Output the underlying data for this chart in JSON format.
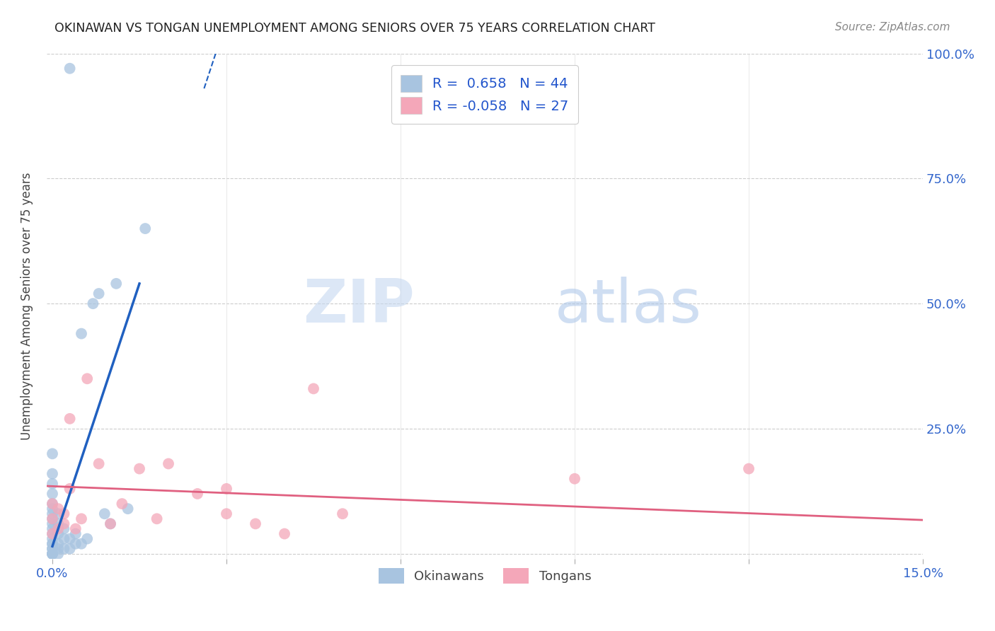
{
  "title": "OKINAWAN VS TONGAN UNEMPLOYMENT AMONG SENIORS OVER 75 YEARS CORRELATION CHART",
  "source": "Source: ZipAtlas.com",
  "ylabel_label": "Unemployment Among Seniors over 75 years",
  "x_ticks": [
    0.0,
    0.03,
    0.06,
    0.09,
    0.12,
    0.15
  ],
  "y_ticks": [
    0.0,
    0.25,
    0.5,
    0.75,
    1.0
  ],
  "xlim": [
    -0.001,
    0.15
  ],
  "ylim": [
    -0.01,
    1.0
  ],
  "okinawan_R": 0.658,
  "okinawan_N": 44,
  "tongan_R": -0.058,
  "tongan_N": 27,
  "okinawan_color": "#a8c4e0",
  "tongan_color": "#f4a7b9",
  "okinawan_line_color": "#2060c0",
  "tongan_line_color": "#e06080",
  "watermark_zip": "ZIP",
  "watermark_atlas": "atlas",
  "background_color": "#ffffff",
  "grid_color": "#cccccc",
  "title_color": "#222222",
  "okinawan_x": [
    0.0,
    0.0,
    0.0,
    0.0,
    0.0,
    0.0,
    0.0,
    0.0,
    0.0,
    0.0,
    0.0,
    0.0,
    0.0,
    0.0,
    0.0,
    0.0,
    0.0,
    0.0,
    0.0,
    0.0,
    0.001,
    0.001,
    0.001,
    0.001,
    0.001,
    0.001,
    0.002,
    0.002,
    0.002,
    0.003,
    0.003,
    0.003,
    0.004,
    0.004,
    0.005,
    0.005,
    0.006,
    0.007,
    0.008,
    0.009,
    0.01,
    0.011,
    0.013,
    0.016
  ],
  "okinawan_y": [
    0.0,
    0.0,
    0.0,
    0.0,
    0.01,
    0.01,
    0.02,
    0.02,
    0.03,
    0.04,
    0.05,
    0.06,
    0.07,
    0.08,
    0.09,
    0.1,
    0.12,
    0.14,
    0.16,
    0.2,
    0.0,
    0.01,
    0.02,
    0.04,
    0.06,
    0.08,
    0.01,
    0.03,
    0.05,
    0.01,
    0.03,
    0.97,
    0.02,
    0.04,
    0.02,
    0.44,
    0.03,
    0.5,
    0.52,
    0.08,
    0.06,
    0.54,
    0.09,
    0.65
  ],
  "tongan_x": [
    0.0,
    0.0,
    0.0,
    0.001,
    0.001,
    0.002,
    0.002,
    0.003,
    0.003,
    0.004,
    0.005,
    0.006,
    0.008,
    0.01,
    0.012,
    0.015,
    0.018,
    0.02,
    0.025,
    0.03,
    0.03,
    0.035,
    0.04,
    0.045,
    0.05,
    0.09,
    0.12
  ],
  "tongan_y": [
    0.04,
    0.07,
    0.1,
    0.05,
    0.09,
    0.06,
    0.08,
    0.13,
    0.27,
    0.05,
    0.07,
    0.35,
    0.18,
    0.06,
    0.1,
    0.17,
    0.07,
    0.18,
    0.12,
    0.08,
    0.13,
    0.06,
    0.04,
    0.33,
    0.08,
    0.15,
    0.17
  ],
  "line_intercept_ok": 0.015,
  "line_slope_ok": 35.0,
  "line_intercept_to": 0.135,
  "line_slope_to": -0.45
}
